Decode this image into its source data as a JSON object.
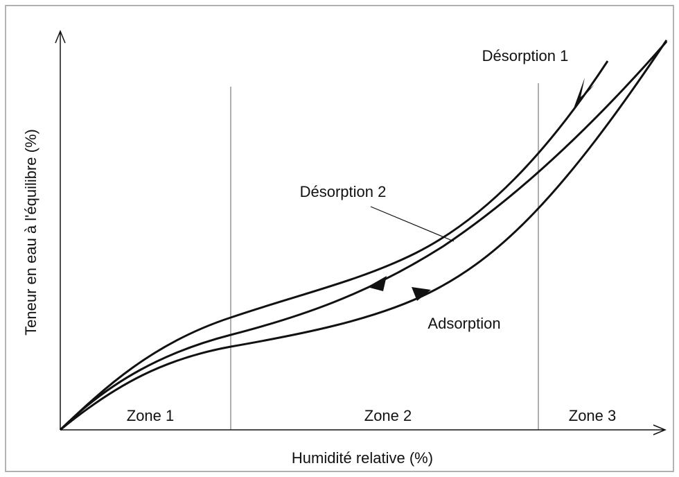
{
  "axes": {
    "x_label": "Humidité relative (%)",
    "y_label": "Teneur en eau à l'équilibre (%)"
  },
  "curves": {
    "desorption_1": "Désorption 1",
    "desorption_2": "Désorption 2",
    "adsorption": "Adsorption"
  },
  "zones": [
    "Zone 1",
    "Zone 2",
    "Zone 3"
  ]
}
